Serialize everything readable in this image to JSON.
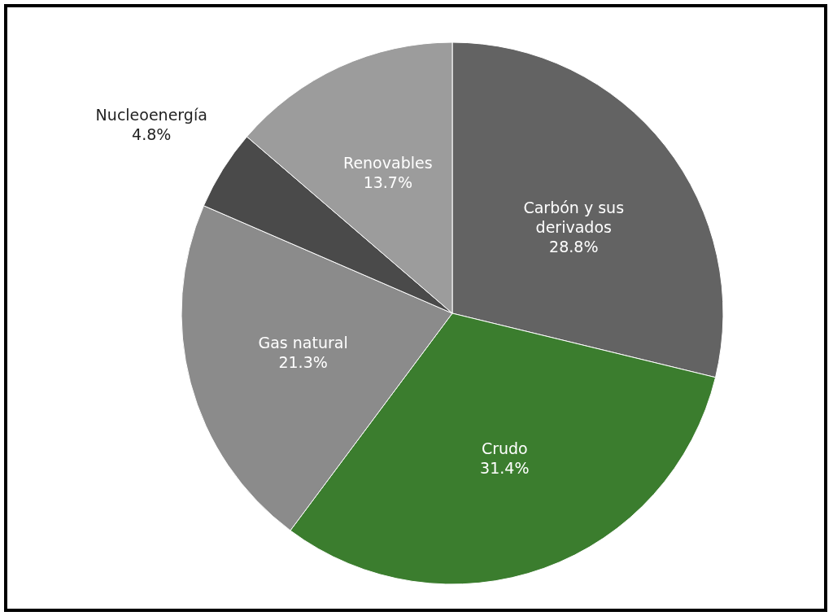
{
  "chart_data": {
    "type": "pie",
    "categories": [
      "Carbón y sus derivados",
      "Crudo",
      "Gas natural",
      "Nucleoenergía",
      "Renovables"
    ],
    "values": [
      28.8,
      31.4,
      21.3,
      4.8,
      13.7
    ],
    "value_labels": [
      "28.8%",
      "31.4%",
      "21.3%",
      "4.8%",
      "13.7%"
    ],
    "colors": [
      "#636363",
      "#3b7d2e",
      "#8b8b8b",
      "#4a4a4a",
      "#9c9c9c"
    ]
  }
}
